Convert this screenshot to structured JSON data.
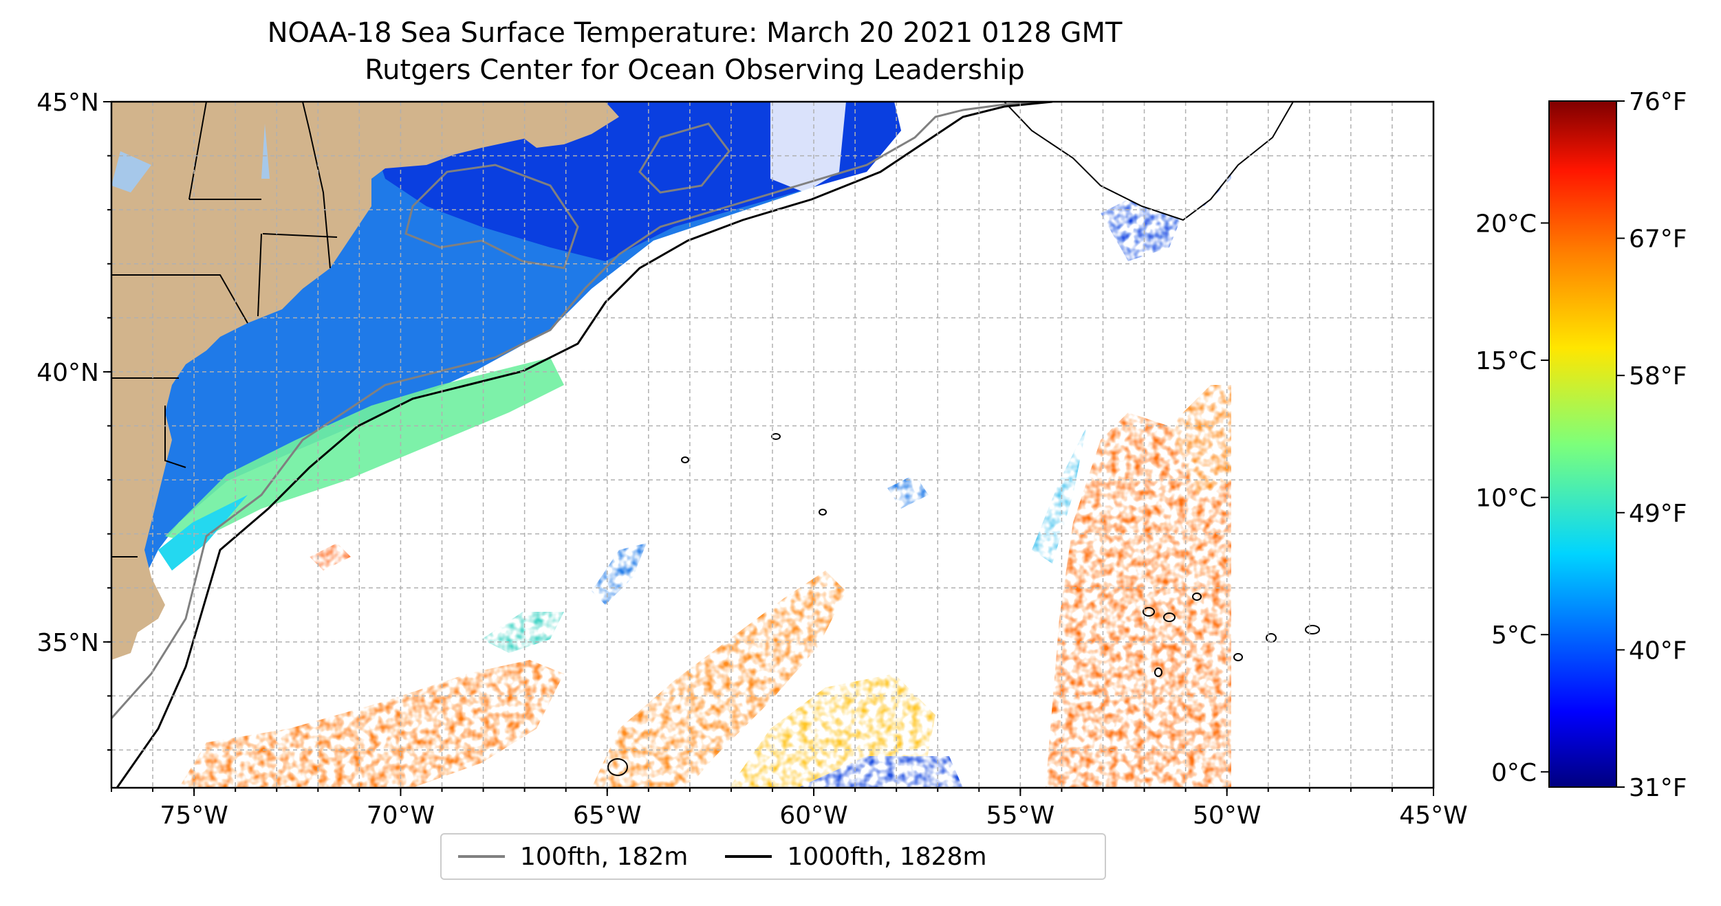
{
  "title": {
    "line1": "NOAA-18 Sea Surface Temperature: March 20 2021 0128 GMT",
    "line2": "Rutgers Center for Ocean Observing Leadership"
  },
  "map": {
    "lon_range": [
      -77,
      -45
    ],
    "lat_range": [
      32.3,
      45
    ],
    "lon_tick_labels": [
      "75°W",
      "70°W",
      "65°W",
      "60°W",
      "55°W",
      "50°W",
      "45°W"
    ],
    "lat_tick_labels": [
      "35°N",
      "40°N",
      "45°N"
    ],
    "grid": true,
    "land_color": "#d2b48c",
    "water_body_color": "#a6c8ea"
  },
  "legend": {
    "items": [
      {
        "label": "100fth, 182m",
        "color": "#808080"
      },
      {
        "label": "1000fth, 1828m",
        "color": "#000000"
      }
    ]
  },
  "colorbar": {
    "colormap": "jet",
    "celsius_labels": [
      "0°C",
      "5°C",
      "10°C",
      "15°C",
      "20°C"
    ],
    "fahrenheit_labels": [
      "31°F",
      "40°F",
      "49°F",
      "58°F",
      "67°F",
      "76°F"
    ],
    "range_fahrenheit": [
      31,
      76
    ]
  }
}
